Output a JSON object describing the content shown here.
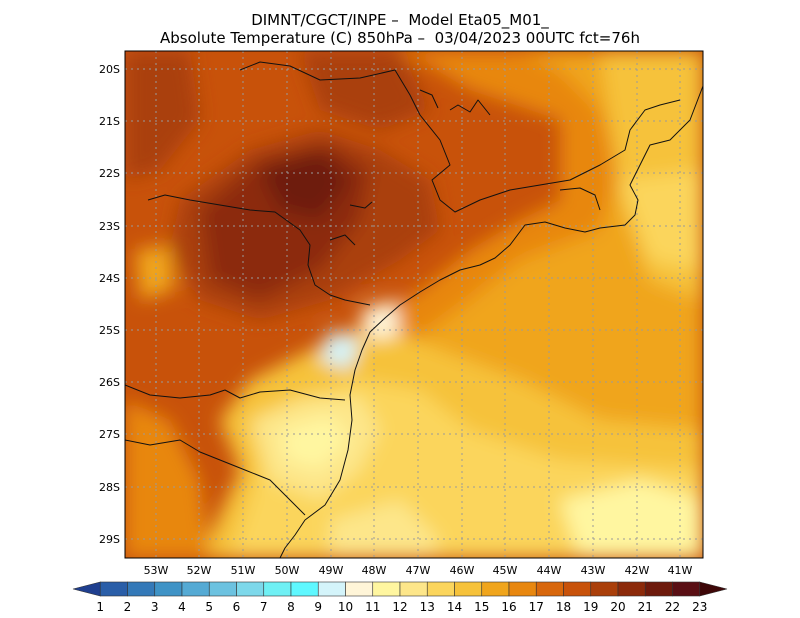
{
  "header": {
    "line1": "DIMNT/CGCT/INPE –  Model Eta05_M01_",
    "line2": "Absolute Temperature (C) 850hPa –  03/04/2023 00UTC fct=76h"
  },
  "map": {
    "lat_labels": [
      "20S",
      "21S",
      "22S",
      "23S",
      "24S",
      "25S",
      "26S",
      "27S",
      "28S",
      "29S"
    ],
    "lon_labels": [
      "53W",
      "52W",
      "51W",
      "50W",
      "49W",
      "48W",
      "47W",
      "46W",
      "45W",
      "44W",
      "43W",
      "42W",
      "41W"
    ],
    "gridlines": true
  },
  "colorbar": {
    "labels": [
      "1",
      "2",
      "3",
      "4",
      "5",
      "6",
      "7",
      "8",
      "9",
      "10",
      "11",
      "12",
      "13",
      "14",
      "15",
      "16",
      "17",
      "18",
      "19",
      "20",
      "21",
      "22",
      "23"
    ],
    "colors": [
      "#1f3f8f",
      "#2a5ea8",
      "#3479b8",
      "#3f93c6",
      "#55aad4",
      "#6cc2e0",
      "#7dd8ea",
      "#6ff0f4",
      "#5ff8ff",
      "#d4f4fa",
      "#fff5d8",
      "#fff6a0",
      "#fde68a",
      "#fbd55c",
      "#f6c23a",
      "#f0a51c",
      "#e8870f",
      "#d8670c",
      "#c8520a",
      "#aa3f0a",
      "#8c2a0a",
      "#6e1a0c",
      "#5a0f14",
      "#3e0708"
    ]
  }
}
